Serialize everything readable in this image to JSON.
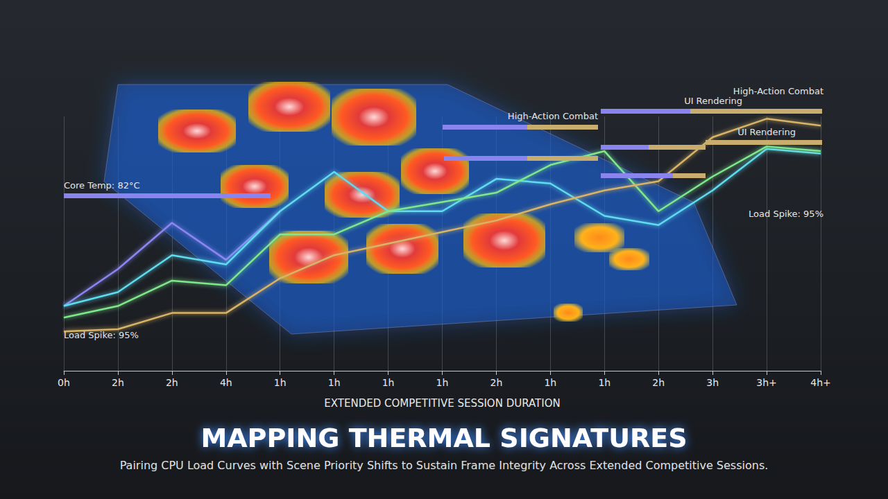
{
  "chart_data": {
    "type": "line",
    "title": "MAPPING THERMAL SIGNATURES",
    "subtitle": "Pairing CPU Load Curves with Scene Priority Shifts to Sustain Frame Integrity Across Extended Competitive Sessions.",
    "x_label": "EXTENDED COMPETITIVE SESSION DURATION",
    "categories": [
      "0h",
      "2h",
      "2h",
      "4h",
      "1h",
      "1h",
      "1h",
      "1h",
      "2h",
      "1h",
      "1h",
      "2h",
      "3h",
      "3h+",
      "4h+"
    ],
    "series": [
      {
        "color": "#8c86f2",
        "values": [
          28,
          44,
          64,
          48,
          69,
          null,
          null,
          null,
          null,
          null,
          null,
          null,
          null,
          null,
          null
        ]
      },
      {
        "color": "#5fdcf0",
        "values": [
          28,
          34,
          50,
          46,
          69,
          86,
          69,
          69,
          83,
          81,
          67,
          63,
          78,
          96,
          94
        ]
      },
      {
        "color": "#7fe88c",
        "values": [
          23,
          28,
          39,
          37,
          59,
          59,
          69,
          73,
          77,
          89,
          95,
          69,
          84,
          97,
          95
        ]
      },
      {
        "color": "#d8b466",
        "values": [
          17,
          18,
          25,
          25,
          40,
          50,
          55,
          60,
          65,
          72,
          78,
          82,
          101,
          109,
          106
        ]
      }
    ],
    "ylim": [
      0,
      110
    ],
    "tick_labels": "x",
    "grid": true,
    "annotations": [
      "Core Temp: 82°C",
      "Load Spike: 95%",
      "High-Action Combat",
      "UI Rendering",
      "High-Action Combat",
      "UI Rendering",
      "Load Spike: 95%"
    ]
  }
}
